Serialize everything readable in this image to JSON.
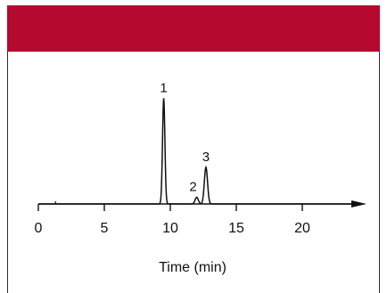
{
  "colors": {
    "header": "#b5092f",
    "trace": "#111111",
    "axis": "#111111"
  },
  "chart_data": {
    "type": "line",
    "title": "",
    "xlabel": "Time (min)",
    "ylabel": "",
    "xlim": [
      0,
      25
    ],
    "ylim": [
      0,
      1.0
    ],
    "xticks": [
      0,
      5,
      10,
      15,
      20
    ],
    "xtick_labels": [
      "0",
      "5",
      "10",
      "15",
      "20"
    ],
    "grid": false,
    "legend": "none",
    "peaks": [
      {
        "label": "1",
        "time": 9.5,
        "height": 0.95,
        "width": 0.09
      },
      {
        "label": "2",
        "time": 12.0,
        "height": 0.06,
        "width": 0.12
      },
      {
        "label": "3",
        "time": 12.7,
        "height": 0.33,
        "width": 0.12
      }
    ],
    "baseline_marks": [
      1.3
    ]
  }
}
